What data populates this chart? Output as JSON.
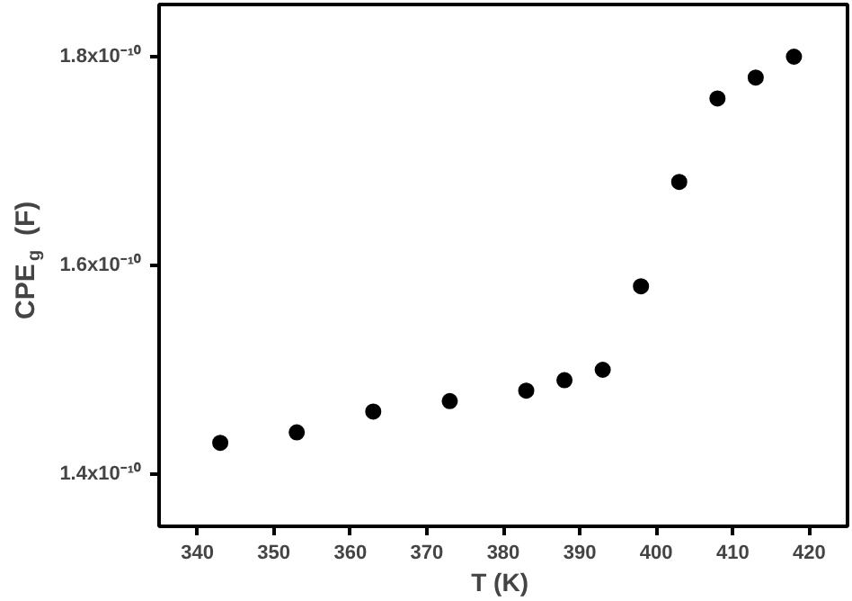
{
  "chart_data": {
    "type": "scatter",
    "xlabel": "T  (K)",
    "ylabel": "CPE$_{g}$ (F)",
    "x": [
      343,
      353,
      363,
      373,
      383,
      388,
      393,
      398,
      403,
      408,
      413,
      418
    ],
    "series": [
      {
        "color": "#000000",
        "values": [
          1.43e-10,
          1.44e-10,
          1.46e-10,
          1.47e-10,
          1.48e-10,
          1.49e-10,
          1.5e-10,
          1.58e-10,
          1.68e-10,
          1.76e-10,
          1.78e-10,
          1.8e-10
        ]
      }
    ],
    "xlim": [
      335,
      425
    ],
    "xticks": [
      340,
      350,
      360,
      370,
      380,
      390,
      400,
      410,
      420
    ],
    "ylim": [
      1.35e-10,
      1.85e-10
    ],
    "yticks": [
      {
        "value": 1.4e-10,
        "label": "1.4x10⁻¹⁰"
      },
      {
        "value": 1.6e-10,
        "label": "1.6x10⁻¹⁰"
      },
      {
        "value": 1.8e-10,
        "label": "1.8x10⁻¹⁰"
      }
    ],
    "grid": false,
    "marker": "circle"
  }
}
